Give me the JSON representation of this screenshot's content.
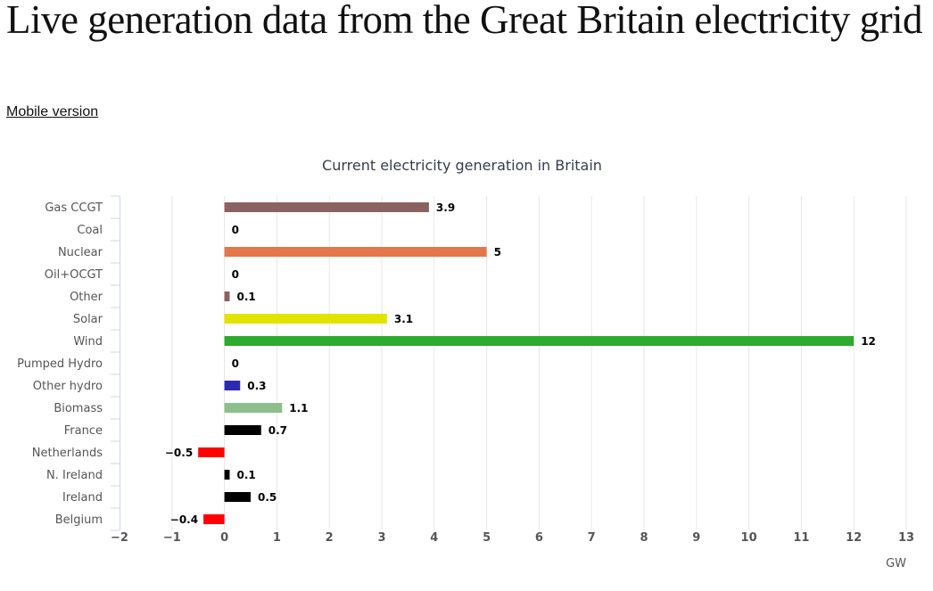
{
  "page": {
    "title": "Live generation data from the Great Britain electricity grid",
    "mobile_link": "Mobile version"
  },
  "chart_data": {
    "type": "bar",
    "orientation": "horizontal",
    "title": "Current electricity generation in Britain",
    "xlabel": "GW",
    "ylabel": "",
    "xlim": [
      -2,
      13
    ],
    "x_ticks": [
      "−2",
      "−1",
      "0",
      "1",
      "2",
      "3",
      "4",
      "5",
      "6",
      "7",
      "8",
      "9",
      "10",
      "11",
      "12",
      "13"
    ],
    "grid": "vertical",
    "legend": "none",
    "categories": [
      "Gas CCGT",
      "Coal",
      "Nuclear",
      "Oil+OCGT",
      "Other",
      "Solar",
      "Wind",
      "Pumped Hydro",
      "Other hydro",
      "Biomass",
      "France",
      "Netherlands",
      "N. Ireland",
      "Ireland",
      "Belgium"
    ],
    "values": [
      3.9,
      0,
      5,
      0,
      0.1,
      3.1,
      12,
      0,
      0.3,
      1.1,
      0.7,
      -0.5,
      0.1,
      0.5,
      -0.4
    ],
    "data_labels": [
      "3.9",
      "0",
      "5",
      "0",
      "0.1",
      "3.1",
      "12",
      "0",
      "0.3",
      "1.1",
      "0.7",
      "−0.5",
      "0.1",
      "0.5",
      "−0.4"
    ],
    "colors": [
      "#8b6260",
      "#000000",
      "#e4774a",
      "#000000",
      "#8b6260",
      "#e3e300",
      "#2eaa2e",
      "#000000",
      "#2b2bb2",
      "#8cbf8c",
      "#000000",
      "#ff0000",
      "#000000",
      "#000000",
      "#ff0000"
    ]
  }
}
